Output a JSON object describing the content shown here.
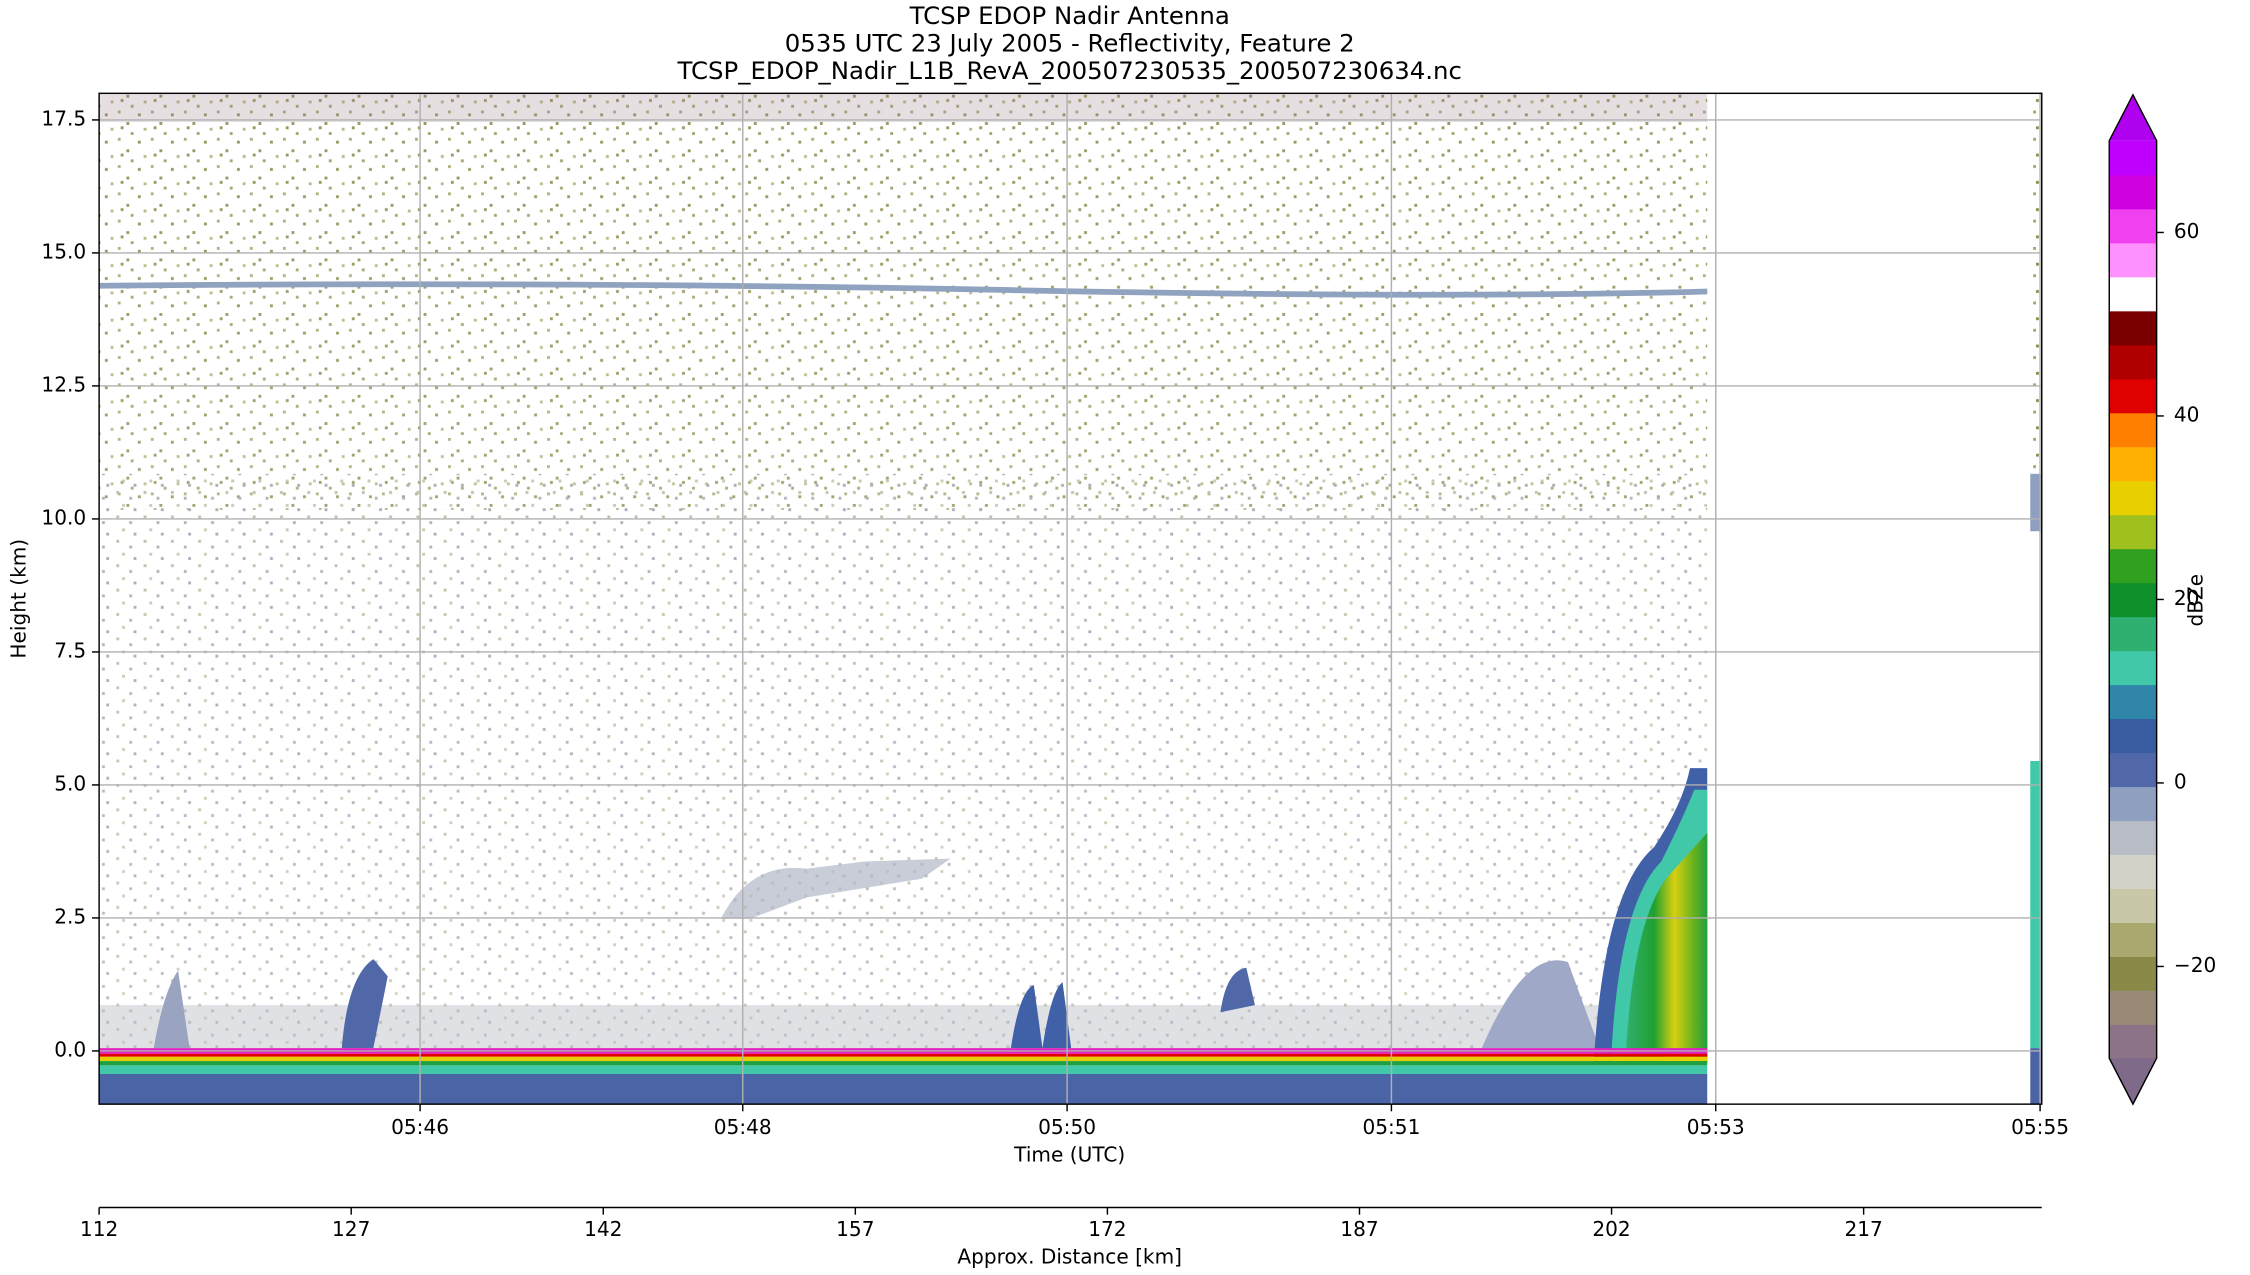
{
  "chart_data": {
    "type": "heatmap",
    "title": [
      "TCSP EDOP Nadir Antenna",
      "0535 UTC 23 July 2005 - Reflectivity, Feature 2",
      "TCSP_EDOP_Nadir_L1B_RevA_200507230535_200507230634.nc"
    ],
    "ylabel": "Height (km)",
    "ylim": [
      -1,
      18
    ],
    "yticks": [
      {
        "value": 0,
        "label": "0.0"
      },
      2.5,
      {
        "value": 5,
        "label": "5.0"
      },
      7.5,
      {
        "value": 10,
        "label": "10.0"
      },
      12.5,
      {
        "value": 15,
        "label": "15.0"
      },
      17.5
    ],
    "xlim": [
      112,
      227.6
    ],
    "time_axis": {
      "label": "Time (UTC)",
      "ticks": [
        {
          "value": 131.1,
          "label": "05:46"
        },
        {
          "value": 150.3,
          "label": "05:48"
        },
        {
          "value": 169.6,
          "label": "05:50"
        },
        {
          "value": 188.9,
          "label": "05:51"
        },
        {
          "value": 208.2,
          "label": "05:53"
        },
        {
          "value": 227.5,
          "label": "05:55"
        }
      ]
    },
    "xlabel": "Approx. Distance [km]",
    "xticks": [
      112,
      127,
      142,
      157,
      172,
      187,
      202,
      217
    ],
    "grid": true,
    "colorbar": {
      "label": "dBZe",
      "lim": [
        -30,
        70
      ],
      "ticks": [
        {
          "value": -20,
          "label": "−20"
        },
        0,
        20,
        40,
        60
      ],
      "under": "#7f6a8a",
      "over": "#b000f0",
      "colors": [
        "#8d7388",
        "#9a8a78",
        "#8a8a48",
        "#a9a970",
        "#c8c8a8",
        "#d2d2c6",
        "#b8bcc4",
        "#8f9fc0",
        "#5068a8",
        "#3a5ca0",
        "#2f86a8",
        "#40c8a8",
        "#30b070",
        "#10902a",
        "#30a020",
        "#a0c020",
        "#e8d000",
        "#ffb000",
        "#ff8000",
        "#e00000",
        "#b00000",
        "#7a0000",
        "#ffffff",
        "#ff90ff",
        "#f040f0",
        "#d000e0",
        "#c000ff"
      ]
    }
  }
}
